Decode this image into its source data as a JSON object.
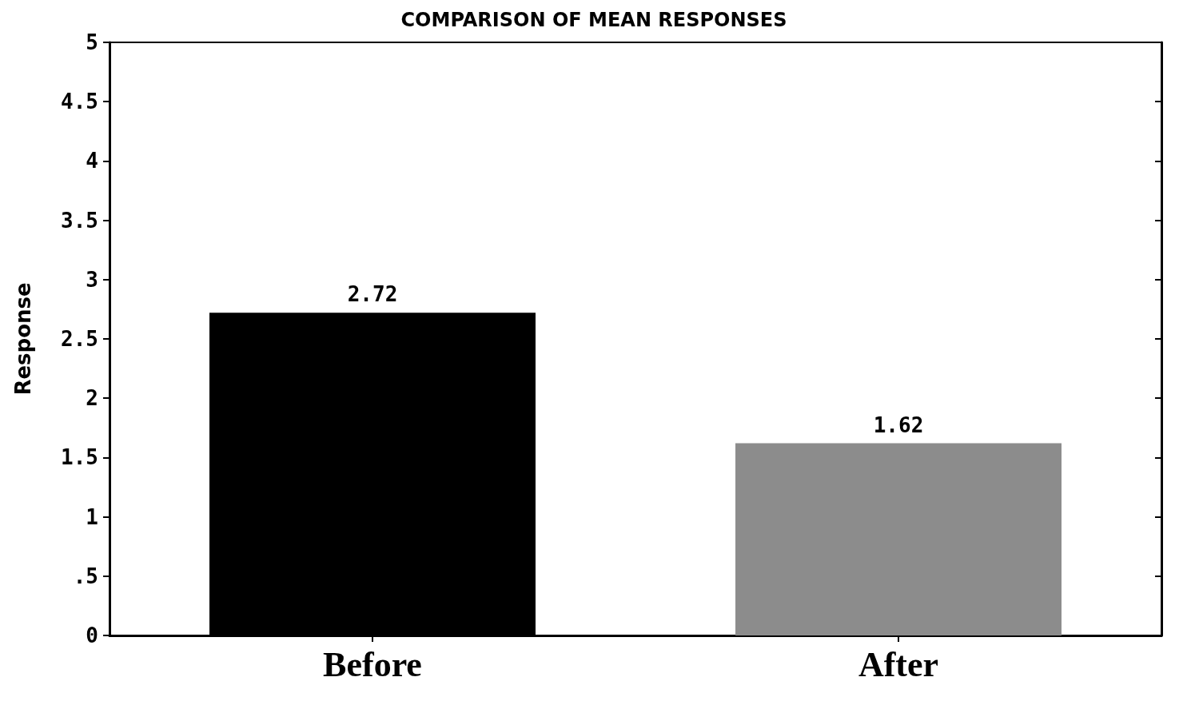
{
  "chart_data": {
    "type": "bar",
    "title": "COMPARISON OF MEAN RESPONSES",
    "ylabel": "Response",
    "categories": [
      "Before",
      "After"
    ],
    "values": [
      2.72,
      1.62
    ],
    "colors": [
      "#000000",
      "#8c8c8c"
    ],
    "data_labels": true,
    "ylim": [
      0,
      5
    ],
    "yticks": [
      0,
      {
        "value": 0.5,
        "label": ".5"
      },
      1,
      1.5,
      2,
      2.5,
      3,
      3.5,
      4,
      4.5,
      5
    ],
    "grid": false
  }
}
